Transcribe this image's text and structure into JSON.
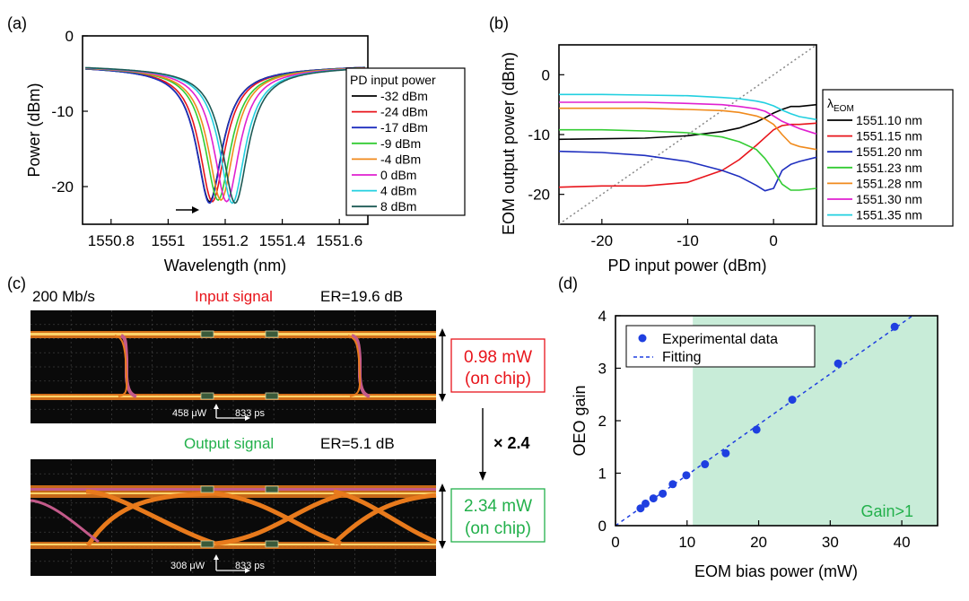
{
  "chart_data": [
    {
      "panel": "(a)",
      "type": "line",
      "xlabel": "Wavelength (nm)",
      "ylabel": "Power (dBm)",
      "xlim": [
        1550.7,
        1551.7
      ],
      "ylim": [
        -25,
        0
      ],
      "xticks": [
        "1550.8",
        "1551",
        "1551.2",
        "1551.4",
        "1551.6"
      ],
      "xtick_values": [
        1550.8,
        1551.0,
        1551.2,
        1551.4,
        1551.6
      ],
      "yticks": [
        "0",
        "-10",
        "-20"
      ],
      "ytick_values": [
        0,
        -10,
        -20
      ],
      "legend_title": "PD input power",
      "baseline": -4.5,
      "series": [
        {
          "name": "-32 dBm",
          "color": "#000000",
          "center": 1551.145,
          "depth": -22.0
        },
        {
          "name": "-24 dBm",
          "color": "#e8141b",
          "center": 1551.155,
          "depth": -22.0
        },
        {
          "name": "-17 dBm",
          "color": "#1f2fbf",
          "center": 1551.145,
          "depth": -22.2
        },
        {
          "name": "-9 dBm",
          "color": "#33cc33",
          "center": 1551.175,
          "depth": -21.8
        },
        {
          "name": "-4 dBm",
          "color": "#f08a1c",
          "center": 1551.185,
          "depth": -21.8
        },
        {
          "name": "0 dBm",
          "color": "#e020d0",
          "center": 1551.205,
          "depth": -22.0
        },
        {
          "name": "4 dBm",
          "color": "#22d0e0",
          "center": 1551.225,
          "depth": -22.2
        },
        {
          "name": "8 dBm",
          "color": "#1d5a55",
          "center": 1551.235,
          "depth": -22.2
        }
      ]
    },
    {
      "panel": "(b)",
      "type": "line",
      "xlabel": "PD input power (dBm)",
      "ylabel": "EOM output power (dBm)",
      "xlim": [
        -25,
        5
      ],
      "ylim": [
        -25,
        5
      ],
      "xticks": [
        "-20",
        "-10",
        "0"
      ],
      "xtick_values": [
        -20,
        -10,
        0
      ],
      "yticks": [
        "0",
        "-10",
        "-20"
      ],
      "ytick_values": [
        0,
        -10,
        -20
      ],
      "legend_title": "λ",
      "legend_title_sub": "EOM",
      "x": [
        -25,
        -20,
        -15,
        -10,
        -6,
        -4,
        -2,
        -1,
        0,
        1,
        2,
        3,
        5
      ],
      "series": [
        {
          "name": "1551.10 nm",
          "color": "#000000",
          "values": [
            -10.8,
            -10.7,
            -10.6,
            -10.2,
            -9.5,
            -8.9,
            -7.9,
            -7.2,
            -6.4,
            -5.8,
            -5.3,
            -5.3,
            -5.0
          ]
        },
        {
          "name": "1551.15 nm",
          "color": "#e8141b",
          "values": [
            -18.8,
            -18.6,
            -18.6,
            -18.0,
            -16.0,
            -14.2,
            -11.8,
            -10.5,
            -9.2,
            -8.5,
            -8.3,
            -8.3,
            -8.1
          ]
        },
        {
          "name": "1551.20 nm",
          "color": "#1f2fbf",
          "values": [
            -12.8,
            -13.0,
            -13.5,
            -14.5,
            -16.0,
            -17.0,
            -18.5,
            -19.4,
            -19.0,
            -16.0,
            -15.0,
            -14.5,
            -13.8
          ]
        },
        {
          "name": "1551.23 nm",
          "color": "#33cc33",
          "values": [
            -9.2,
            -9.2,
            -9.4,
            -9.7,
            -10.4,
            -11.2,
            -12.5,
            -14.0,
            -16.0,
            -18.3,
            -19.3,
            -19.3,
            -19.0
          ]
        },
        {
          "name": "1551.28 nm",
          "color": "#f08a1c",
          "values": [
            -5.6,
            -5.6,
            -5.6,
            -5.8,
            -6.0,
            -6.3,
            -6.9,
            -7.4,
            -8.3,
            -10.0,
            -11.5,
            -12.0,
            -12.5
          ]
        },
        {
          "name": "1551.30 nm",
          "color": "#e020d0",
          "values": [
            -4.6,
            -4.6,
            -4.6,
            -4.8,
            -5.0,
            -5.3,
            -5.7,
            -6.1,
            -6.9,
            -7.8,
            -8.4,
            -9.0,
            -9.9
          ]
        },
        {
          "name": "1551.35 nm",
          "color": "#22d0e0",
          "values": [
            -3.3,
            -3.3,
            -3.4,
            -3.5,
            -3.8,
            -4.0,
            -4.4,
            -4.7,
            -5.2,
            -5.9,
            -6.5,
            -7.0,
            -7.5
          ]
        }
      ],
      "reference_line": {
        "style": "dotted",
        "color": "#888888",
        "from": [
          -25,
          -25
        ],
        "to": [
          5,
          5
        ]
      }
    },
    {
      "panel": "(c)",
      "type": "eye-diagram",
      "bitrate": "200 Mb/s",
      "input": {
        "title": "Input signal",
        "er": "ER=19.6 dB",
        "amplitude_scale": "458 μW",
        "time_scale": "833 ps",
        "power": "0.98 mW",
        "power_note": "(on chip)",
        "title_color": "#e8141b"
      },
      "output": {
        "title": "Output signal",
        "er": "ER=5.1 dB",
        "amplitude_scale": "308 μW",
        "time_scale": "833 ps",
        "power": "2.34 mW",
        "power_note": "(on chip)",
        "title_color": "#22b04b"
      },
      "gain_label": "× 2.4"
    },
    {
      "panel": "(d)",
      "type": "scatter",
      "xlabel": "EOM bias power (mW)",
      "ylabel": "OEO gain",
      "xlim": [
        0,
        45
      ],
      "ylim": [
        0,
        4
      ],
      "xticks": [
        "0",
        "10",
        "20",
        "30",
        "40"
      ],
      "xtick_values": [
        0,
        10,
        20,
        30,
        40
      ],
      "yticks": [
        "0",
        "1",
        "2",
        "3",
        "4"
      ],
      "ytick_values": [
        0,
        1,
        2,
        3,
        4
      ],
      "x": [
        3.5,
        4.2,
        5.3,
        6.6,
        8.0,
        9.9,
        12.5,
        15.4,
        19.7,
        24.7,
        31.1,
        39.0
      ],
      "y": [
        0.33,
        0.42,
        0.52,
        0.61,
        0.79,
        0.96,
        1.17,
        1.38,
        1.83,
        2.4,
        3.09,
        3.79
      ],
      "fit": {
        "x": [
          0,
          41.5
        ],
        "y": [
          0,
          4.0
        ]
      },
      "shaded_region": {
        "x_from": 10.8,
        "x_to": 45,
        "color": "#c8ecd8",
        "label": "Gain>1"
      },
      "legend": [
        "Experimental data",
        "Fitting"
      ],
      "marker_color": "#1f3fe0"
    }
  ]
}
